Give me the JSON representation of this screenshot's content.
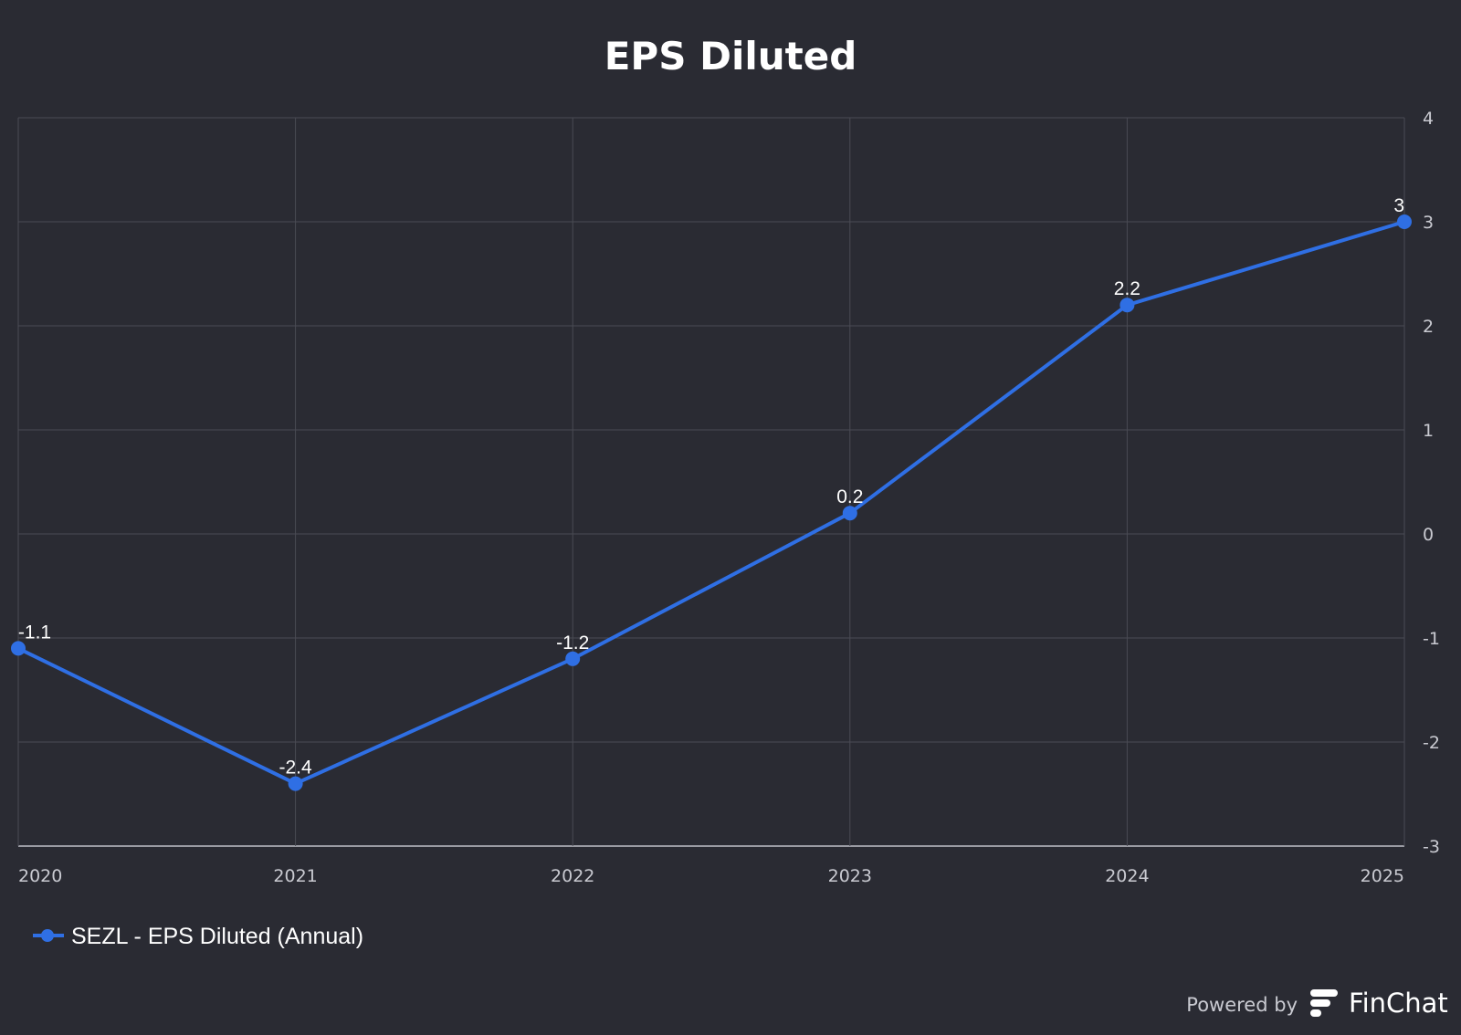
{
  "chart_data": {
    "type": "line",
    "title": "EPS Diluted",
    "x": [
      "2020",
      "2021",
      "2022",
      "2023",
      "2024",
      "2025"
    ],
    "series": [
      {
        "name": "SEZL - EPS Diluted (Annual)",
        "values": [
          -1.1,
          -2.4,
          -1.2,
          0.2,
          2.2,
          3
        ],
        "labels": [
          "-1.1",
          "-2.4",
          "-1.2",
          "0.2",
          "2.2",
          "3"
        ],
        "color": "#2f6fe4"
      }
    ],
    "ylim": [
      -3,
      4
    ],
    "yticks": [
      4,
      3,
      2,
      1,
      0,
      -1,
      -2,
      -3
    ],
    "y_axis_side": "right",
    "grid": true,
    "legend_position": "bottom-left"
  },
  "footer": {
    "powered_by": "Powered by",
    "brand": "FinChat"
  },
  "colors": {
    "background": "#2a2b33",
    "grid": "#4a4b54",
    "baseline": "#9a9ba3",
    "accent": "#2f6fe4"
  },
  "icons": {
    "brand_logo": "finchat-logo-icon",
    "legend_marker": "line-with-dot-icon"
  }
}
